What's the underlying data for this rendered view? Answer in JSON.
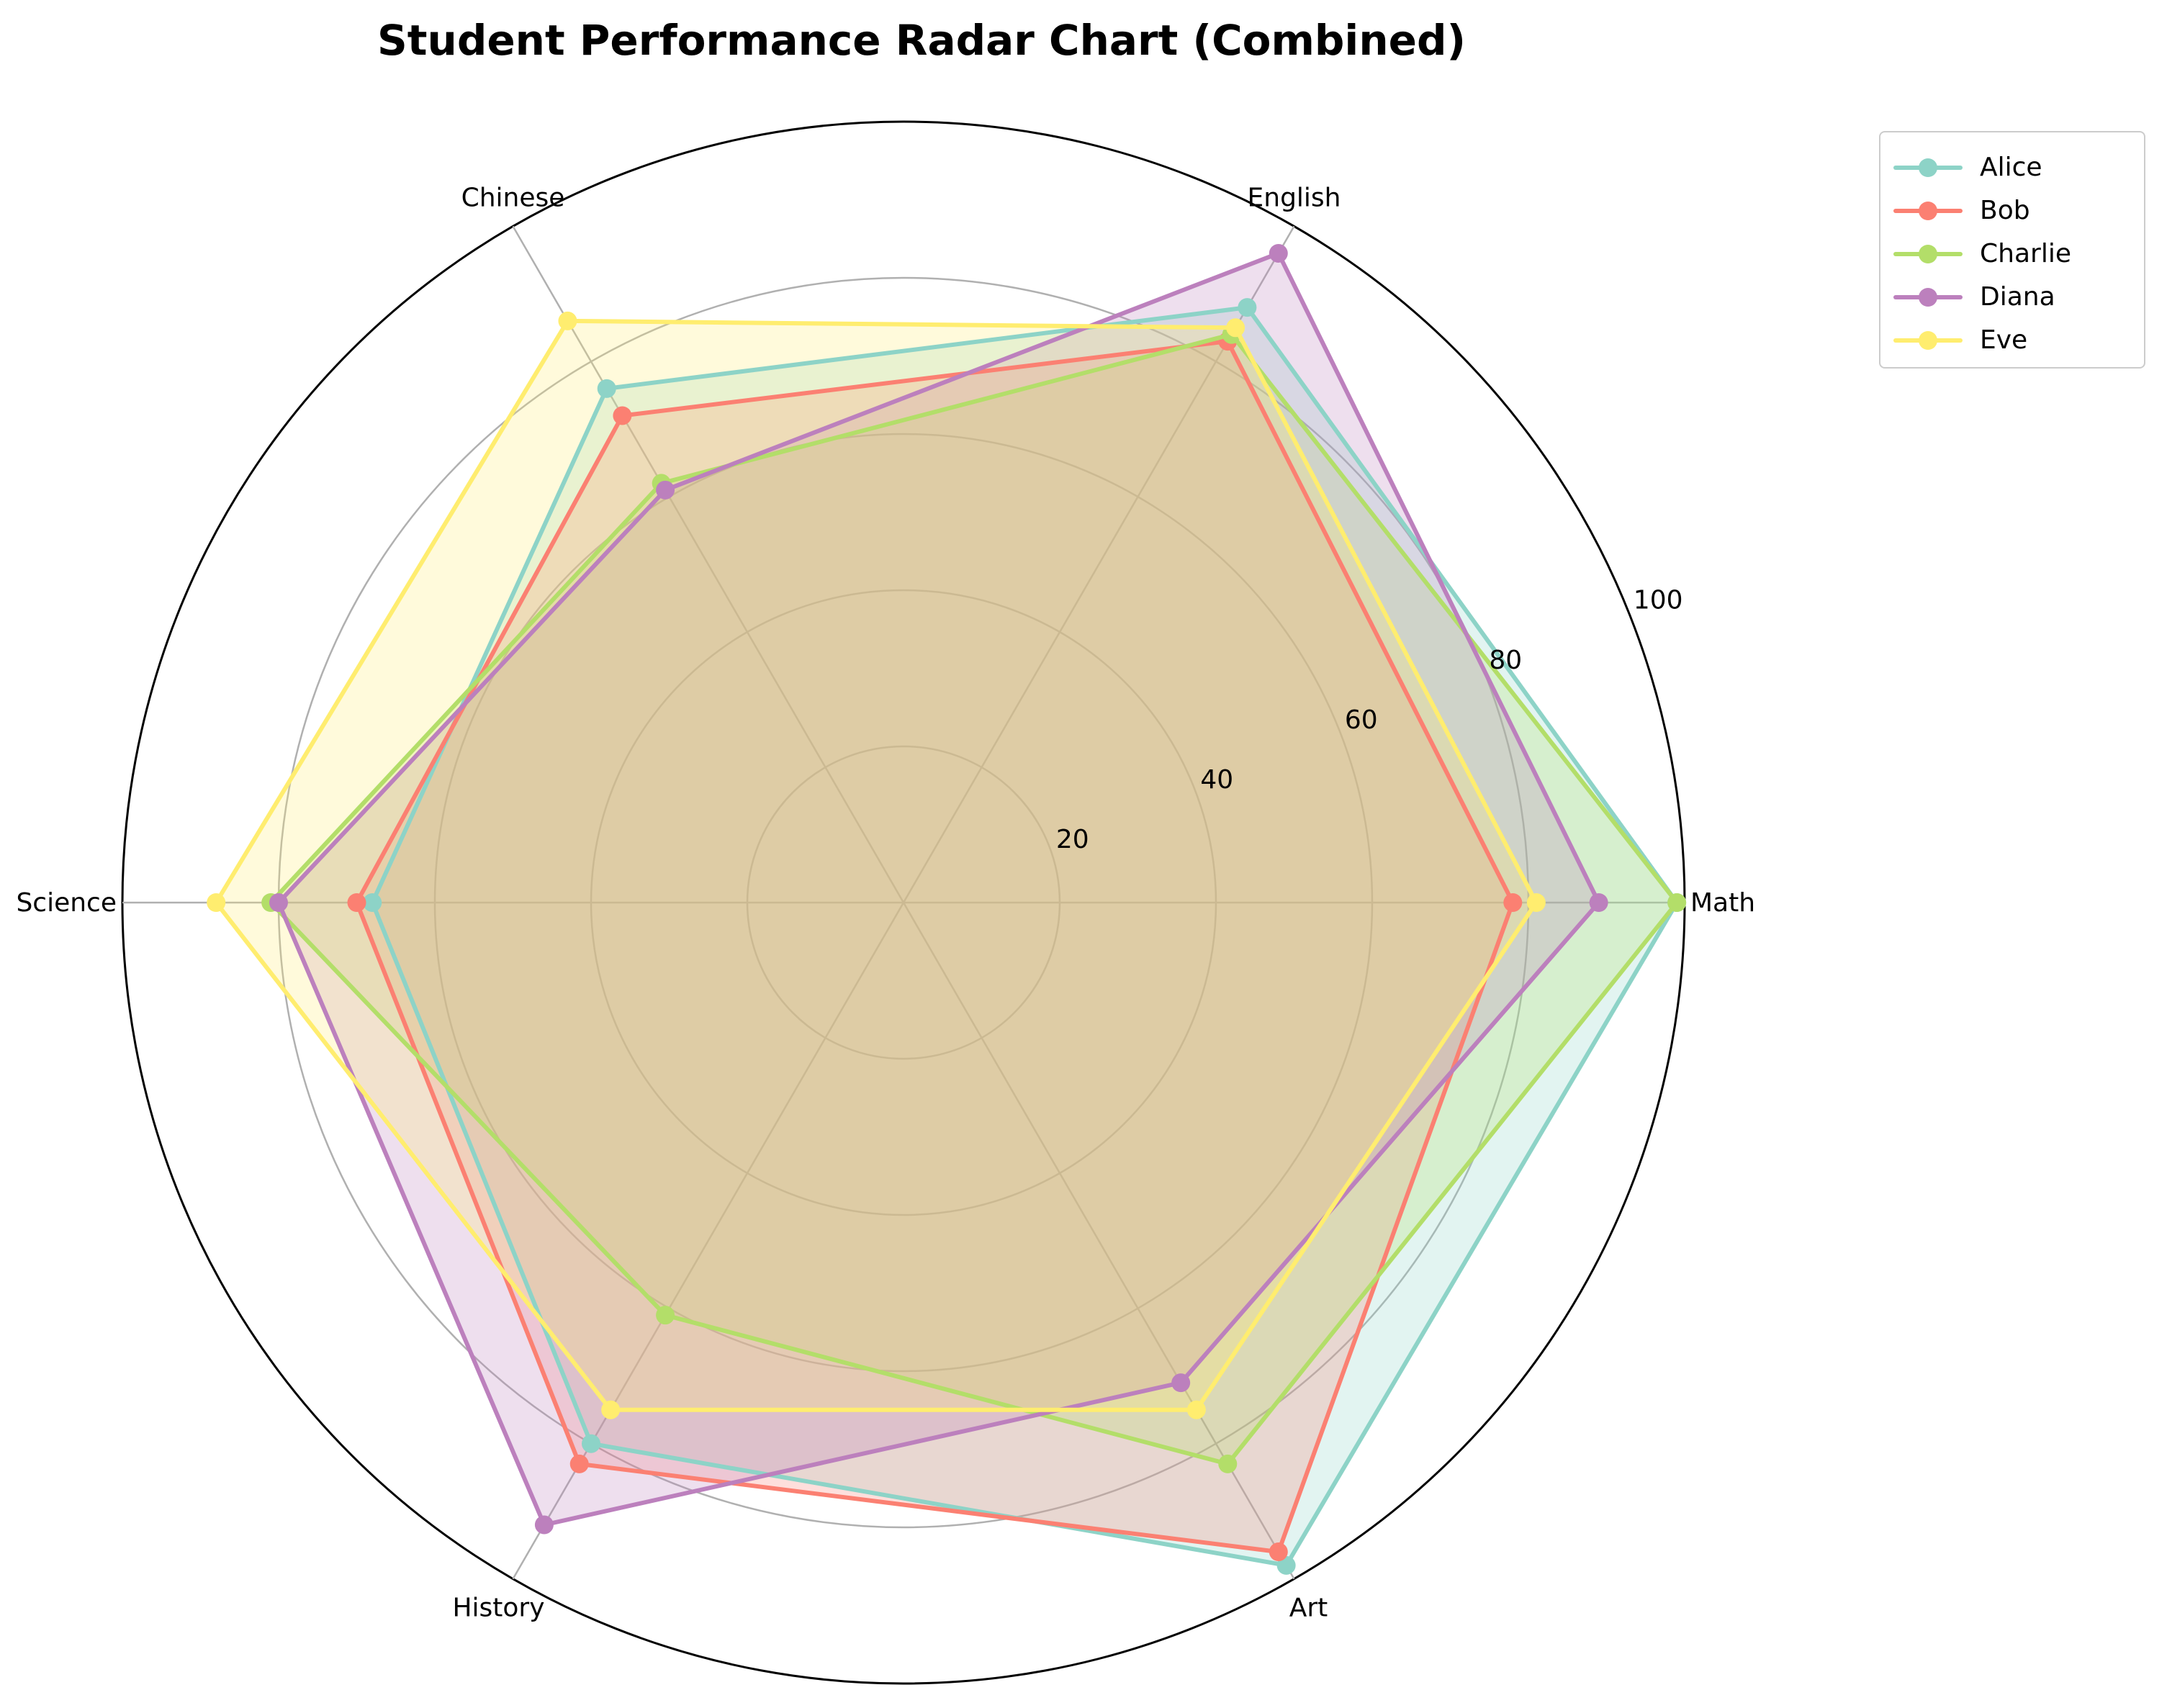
{
  "chart_data": {
    "type": "radar",
    "title": "Student Performance Radar Chart (Combined)",
    "axes": [
      "Math",
      "English",
      "Chinese",
      "Science",
      "History",
      "Art"
    ],
    "rlim": [
      0,
      100
    ],
    "rticks": [
      20,
      40,
      60,
      80,
      100
    ],
    "grid": true,
    "legend_position": "top-right outside",
    "series": [
      {
        "name": "Alice",
        "color": "#8dd3c7",
        "values": [
          99,
          88,
          76,
          68,
          80,
          98
        ]
      },
      {
        "name": "Bob",
        "color": "#fb8072",
        "values": [
          78,
          83,
          72,
          70,
          83,
          96
        ]
      },
      {
        "name": "Charlie",
        "color": "#b3de69",
        "values": [
          99,
          84,
          62,
          81,
          61,
          83
        ]
      },
      {
        "name": "Diana",
        "color": "#bc80bd",
        "values": [
          89,
          96,
          61,
          80,
          92,
          71
        ]
      },
      {
        "name": "Eve",
        "color": "#ffed6f",
        "values": [
          81,
          85,
          86,
          88,
          75,
          75
        ]
      }
    ]
  }
}
